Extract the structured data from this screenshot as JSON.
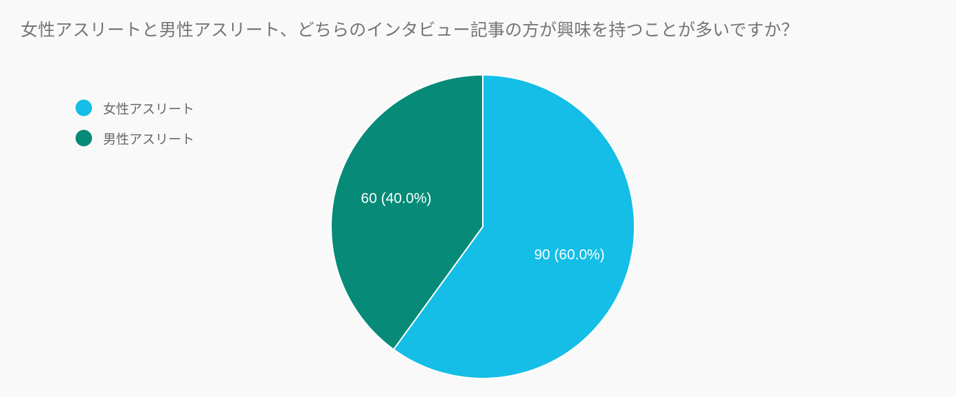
{
  "title": "女性アスリートと男性アスリート、どちらのインタビュー記事の方が興味を持つことが多いですか？",
  "colors": {
    "background": "#f9f9f9",
    "female": "#14bee6",
    "male": "#078a78"
  },
  "chart_data": {
    "type": "pie",
    "title": "女性アスリートと男性アスリート、どちらのインタビュー記事の方が興味を持つことが多いですか？",
    "legend_position": "top-left",
    "slices": [
      {
        "name": "女性アスリート",
        "value": 90,
        "percent": 60.0,
        "label": "90 (60.0%)",
        "color": "#14bee6"
      },
      {
        "name": "男性アスリート",
        "value": 60,
        "percent": 40.0,
        "label": "60 (40.0%)",
        "color": "#078a78"
      }
    ]
  }
}
